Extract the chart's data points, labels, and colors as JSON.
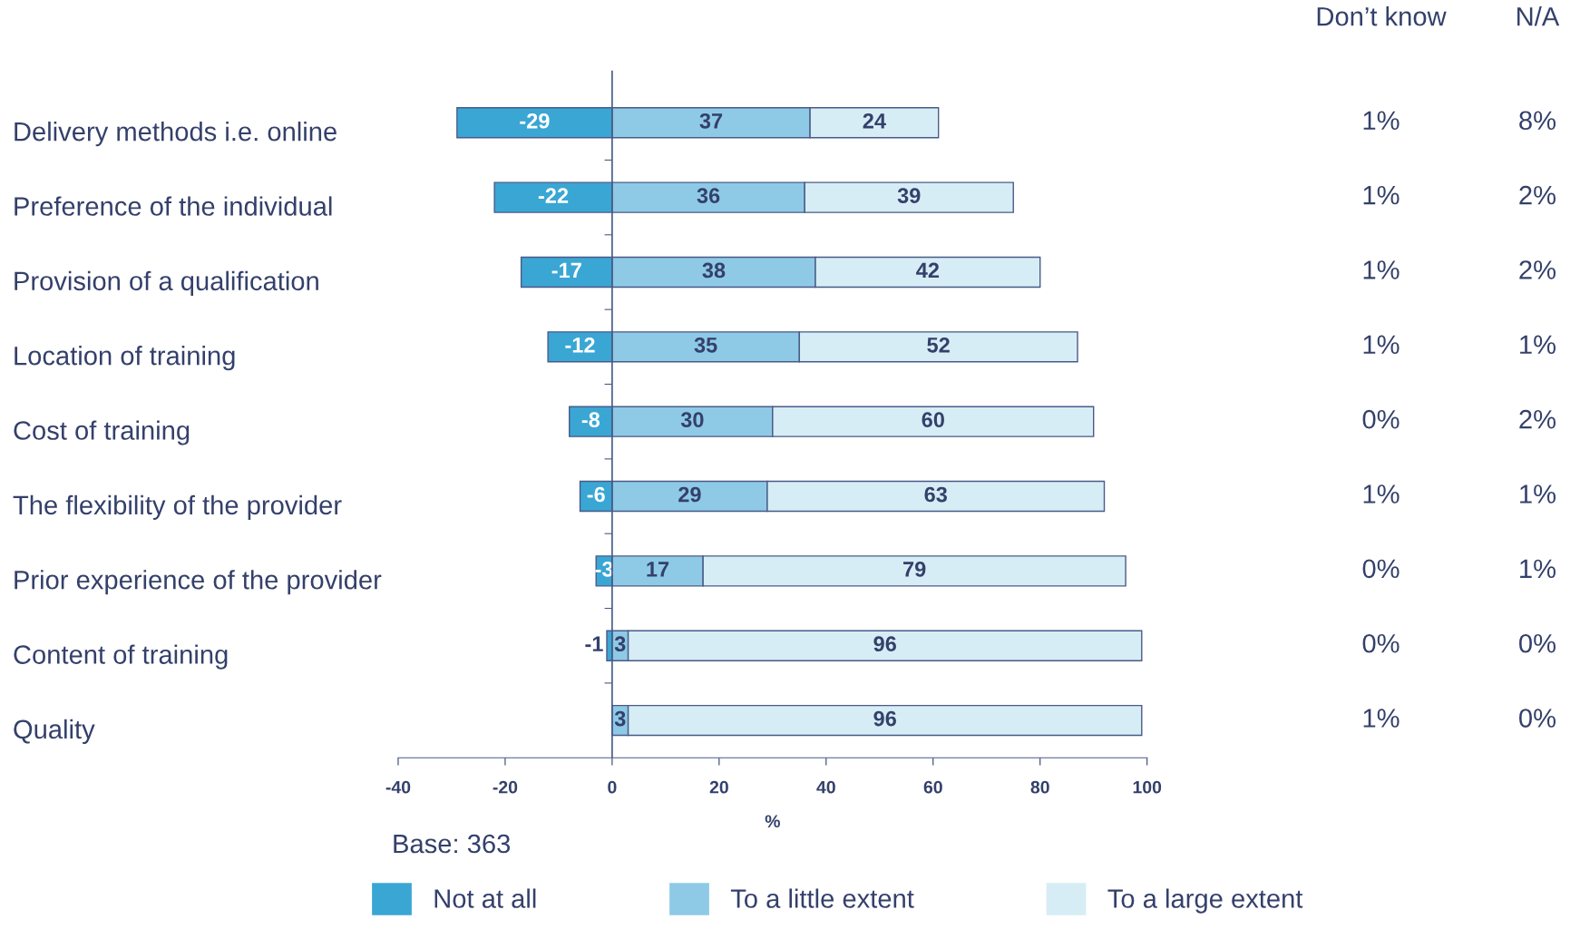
{
  "chart_data": {
    "type": "bar",
    "orientation": "horizontal",
    "stacked": true,
    "categories": [
      "Delivery methods i.e. online",
      "Preference of the individual",
      "Provision of a qualification",
      "Location of training",
      "Cost of training",
      "The flexibility of the provider",
      "Prior experience of the provider",
      "Content of training",
      "Quality"
    ],
    "series": [
      {
        "name": "Not at all",
        "color": "#3aa6d4",
        "values": [
          -29,
          -22,
          -17,
          -12,
          -8,
          -6,
          -3,
          -1,
          0
        ],
        "value_labels": [
          "-29",
          "-22",
          "-17",
          "-12",
          "-8",
          "-6",
          "-3",
          "-1",
          null
        ]
      },
      {
        "name": "To a little extent",
        "color": "#8ecae6",
        "values": [
          37,
          36,
          38,
          35,
          30,
          29,
          17,
          3,
          3
        ],
        "value_labels": [
          "37",
          "36",
          "38",
          "35",
          "30",
          "29",
          "17",
          "3",
          "3"
        ]
      },
      {
        "name": "To a large extent",
        "color": "#d6edf5",
        "values": [
          24,
          39,
          42,
          52,
          60,
          63,
          79,
          96,
          96
        ],
        "value_labels": [
          "24",
          "39",
          "42",
          "52",
          "60",
          "63",
          "79",
          "96",
          "96"
        ]
      }
    ],
    "xlim": [
      -40,
      100
    ],
    "xticks": [
      -40,
      -20,
      0,
      20,
      40,
      60,
      80,
      100
    ],
    "xlabel": "%",
    "legend": "bottom",
    "grid": false,
    "ref_lines": [
      {
        "axis": "x",
        "value": 0,
        "color": "#4a5a88"
      }
    ],
    "annotations": [
      "Base: 363",
      "Don’t know",
      "N/A",
      "1%",
      "8%",
      "1%",
      "2%",
      "1%",
      "2%",
      "1%",
      "1%",
      "0%",
      "2%",
      "1%",
      "1%",
      "0%",
      "1%",
      "0%",
      "0%",
      "1%",
      "0%"
    ]
  }
}
